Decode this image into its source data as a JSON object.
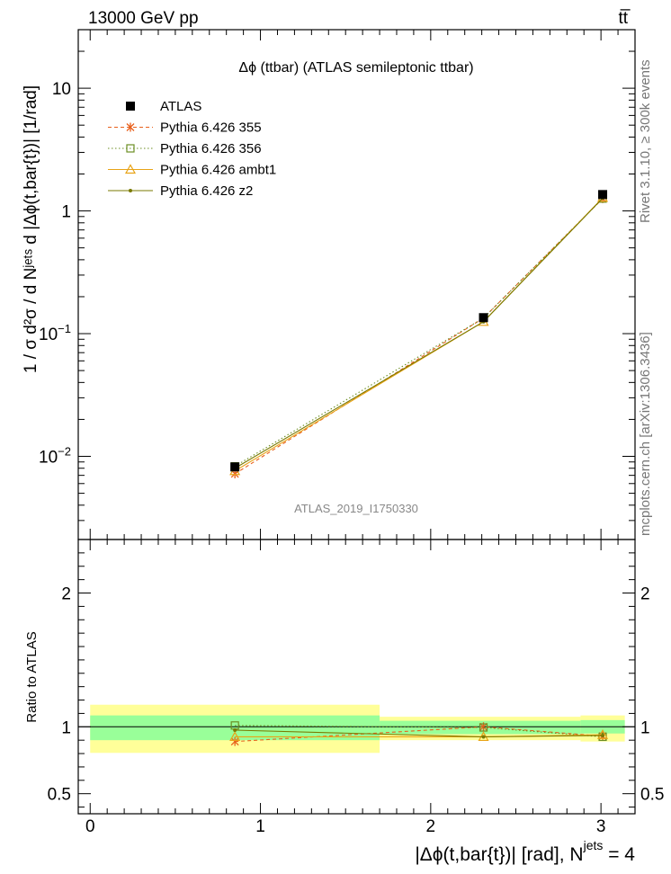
{
  "header": {
    "energy_label": "13000 GeV pp",
    "process_label": "tt̅"
  },
  "chart_data": {
    "type": "line",
    "title": "Δϕ (ttbar) (ATLAS semileptonic ttbar)",
    "analysis_label": "ATLAS_2019_I1750330",
    "xlabel": "|Δϕ(t,bar{t})| [rad], N",
    "xlabel_sup": "jets",
    "xlabel_suffix": " = 4",
    "ylabel": "1 / σ d²σ / d Nʲᵉᵗˢ d |Δϕ(t,bar{t})| [1/rad]",
    "ratio_ylabel": "Ratio to ATLAS",
    "side_label_top": "Rivet 3.1.10, ≥ 300k events",
    "side_label_bottom": "mcplots.cern.ch [arXiv:1306.3436]",
    "xlim": [
      -0.07,
      3.2
    ],
    "ylim_log": [
      0.0021,
      30
    ],
    "ratio_ylim": [
      0.35,
      2.4
    ],
    "x_ticks": [
      {
        "value": 0,
        "label": "0"
      },
      {
        "value": 1,
        "label": "1"
      },
      {
        "value": 2,
        "label": "2"
      },
      {
        "value": 3,
        "label": "3"
      }
    ],
    "y_ticks": [
      {
        "value": 0.01,
        "base": "10",
        "exp": "−2"
      },
      {
        "value": 0.1,
        "base": "10",
        "exp": "−1"
      },
      {
        "value": 1,
        "base": "1",
        "exp": ""
      },
      {
        "value": 10,
        "base": "10",
        "exp": ""
      }
    ],
    "ratio_ticks": [
      {
        "value": 0.5,
        "label": "0.5"
      },
      {
        "value": 1,
        "label": "1"
      },
      {
        "value": 2,
        "label": "2"
      }
    ],
    "bins": [
      {
        "low": 0.0,
        "high": 1.7
      },
      {
        "low": 1.7,
        "high": 2.88
      },
      {
        "low": 2.88,
        "high": 3.14
      }
    ],
    "data": {
      "name": "ATLAS",
      "color": "#000000",
      "x": [
        0.85,
        2.31,
        3.01
      ],
      "y": [
        0.0082,
        0.135,
        1.36
      ]
    },
    "ratio_bands": [
      {
        "stat_low": 0.9,
        "stat_high": 1.085,
        "tot_low": 0.805,
        "tot_high": 1.165
      },
      {
        "stat_low": 0.945,
        "stat_high": 1.045,
        "tot_low": 0.9,
        "tot_high": 1.075
      },
      {
        "stat_low": 0.95,
        "stat_high": 1.05,
        "tot_low": 0.89,
        "tot_high": 1.085
      }
    ],
    "series": [
      {
        "name": "Pythia 6.426 355",
        "color": "#e8601c",
        "dash": "4,3",
        "marker": "star",
        "y": [
          0.0072,
          0.134,
          1.26
        ],
        "ratio": [
          0.89,
          1.0,
          0.93
        ]
      },
      {
        "name": "Pythia 6.426 356",
        "color": "#6b8e23",
        "dash": "1.5,2.5",
        "marker": "square",
        "y": [
          0.0083,
          0.134,
          1.26
        ],
        "ratio": [
          1.01,
          0.995,
          0.925
        ]
      },
      {
        "name": "Pythia 6.426 ambt1",
        "color": "#e8a317",
        "dash": "",
        "marker": "triangle",
        "y": [
          0.0076,
          0.125,
          1.28
        ],
        "ratio": [
          0.925,
          0.925,
          0.94
        ]
      },
      {
        "name": "Pythia 6.426 z2",
        "color": "#7a7a00",
        "dash": "",
        "marker": "dot",
        "y": [
          0.008,
          0.125,
          1.27
        ],
        "ratio": [
          0.975,
          0.925,
          0.935
        ]
      }
    ],
    "colors": {
      "band_stat": "#99ff99",
      "band_total": "#ffff99"
    }
  }
}
